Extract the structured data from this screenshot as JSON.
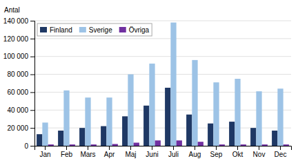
{
  "chart_data": {
    "type": "bar",
    "ylabel": "Antal",
    "categories": [
      "Jan",
      "Feb",
      "Mars",
      "Apr",
      "Maj",
      "Juni",
      "Juli",
      "Aug",
      "Sep",
      "Okt",
      "Nov",
      "Dec"
    ],
    "series": [
      {
        "name": "Finland",
        "color": "#1F3864",
        "values": [
          13000,
          17000,
          20000,
          22000,
          33000,
          45000,
          65000,
          35000,
          25000,
          27000,
          20000,
          17000
        ]
      },
      {
        "name": "Sverige",
        "color": "#9DC3E6",
        "values": [
          26000,
          62000,
          54000,
          54000,
          80000,
          92000,
          138000,
          96000,
          71000,
          75000,
          61000,
          64000
        ]
      },
      {
        "name": "Övriga",
        "color": "#7030A0",
        "values": [
          1500,
          1500,
          1500,
          2000,
          3500,
          6000,
          6000,
          4500,
          1500,
          1500,
          1500,
          1500
        ]
      }
    ],
    "ylim": [
      0,
      140000
    ],
    "yticks": [
      0,
      {
        "value": 20000,
        "label": "20 000"
      },
      {
        "value": 40000,
        "label": "40 000"
      },
      {
        "value": 60000,
        "label": "60 000"
      },
      {
        "value": 80000,
        "label": "80 000"
      },
      {
        "value": 100000,
        "label": "100 000"
      },
      {
        "value": 120000,
        "label": "120 000"
      },
      {
        "value": 140000,
        "label": "140 000"
      }
    ],
    "grid": true,
    "legend": "upper left"
  }
}
